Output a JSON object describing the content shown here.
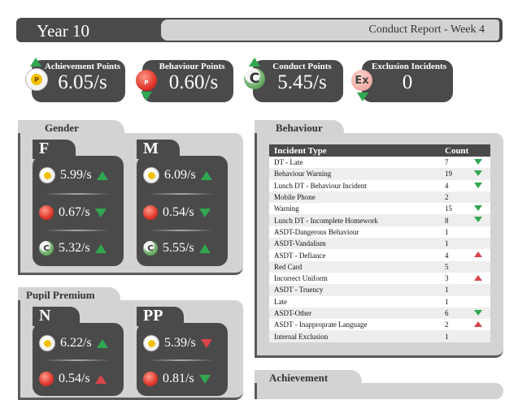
{
  "header": {
    "year": "Year 10",
    "report": "Conduct Report - Week 4"
  },
  "kpis": [
    {
      "label": "Achievement Points",
      "value": "6.05/s",
      "icon": "P",
      "icon_name": "achievement-medal-icon",
      "trend": "up"
    },
    {
      "label": "Behaviour Points",
      "value": "0.60/s",
      "icon": "P",
      "icon_name": "behaviour-red-icon",
      "trend": "down"
    },
    {
      "label": "Conduct Points",
      "value": "5.45/s",
      "icon": "C",
      "icon_name": "conduct-green-icon",
      "trend": "up"
    },
    {
      "label": "Exclusion Incidents",
      "value": "0",
      "icon": "Ex",
      "icon_name": "exclusion-icon",
      "trend": "down"
    }
  ],
  "gender": {
    "title": "Gender",
    "groups": [
      {
        "label": "F",
        "achievement": "5.99/s",
        "behaviour": "0.67/s",
        "conduct": "5.32/s",
        "trends": [
          "up-green",
          "down-green",
          "up-green"
        ]
      },
      {
        "label": "M",
        "achievement": "6.09/s",
        "behaviour": "0.54/s",
        "conduct": "5.55/s",
        "trends": [
          "up-green",
          "down-green",
          "up-green"
        ]
      }
    ]
  },
  "pupil_premium": {
    "title": "Pupil Premium",
    "groups": [
      {
        "label": "N",
        "achievement": "6.22/s",
        "behaviour": "0.54/s",
        "trends": [
          "up-green",
          "up-red"
        ]
      },
      {
        "label": "PP",
        "achievement": "5.39/s",
        "behaviour": "0.81/s",
        "trends": [
          "down-red",
          "down-green"
        ]
      }
    ]
  },
  "behaviour": {
    "title": "Behaviour",
    "columns": [
      "Incident Type",
      "Count"
    ],
    "rows": [
      {
        "type": "DT - Late",
        "count": "7",
        "trend": "down-green"
      },
      {
        "type": "Behaviour Warning",
        "count": "19",
        "trend": "down-green"
      },
      {
        "type": "Lunch DT - Behaviour Incident",
        "count": "4",
        "trend": "down-green"
      },
      {
        "type": "Mobile Phone",
        "count": "2",
        "trend": ""
      },
      {
        "type": "Warning",
        "count": "15",
        "trend": "down-green"
      },
      {
        "type": "Lunch DT - Incomplete Homework",
        "count": "8",
        "trend": "down-green"
      },
      {
        "type": "ASDT-Dangerous Behaviour",
        "count": "1",
        "trend": ""
      },
      {
        "type": "ASDT-Vandalism",
        "count": "1",
        "trend": ""
      },
      {
        "type": "ASDT - Defiance",
        "count": "4",
        "trend": "up-red"
      },
      {
        "type": "Red Card",
        "count": "5",
        "trend": ""
      },
      {
        "type": "Incorrect Uniform",
        "count": "3",
        "trend": "up-red"
      },
      {
        "type": "ASDT - Truency",
        "count": "1",
        "trend": ""
      },
      {
        "type": "Late",
        "count": "1",
        "trend": ""
      },
      {
        "type": "ASDT-Other",
        "count": "6",
        "trend": "down-green"
      },
      {
        "type": "ASDT - Inapproprate Language",
        "count": "2",
        "trend": "up-red"
      },
      {
        "type": "Internal Exclusion",
        "count": "1",
        "trend": ""
      }
    ]
  },
  "achievement": {
    "title": "Achievement"
  },
  "colors": {
    "dark": "#4a4a4a",
    "panel": "#d3d3d3",
    "green": "#2fa84f",
    "red": "#d9464a"
  }
}
